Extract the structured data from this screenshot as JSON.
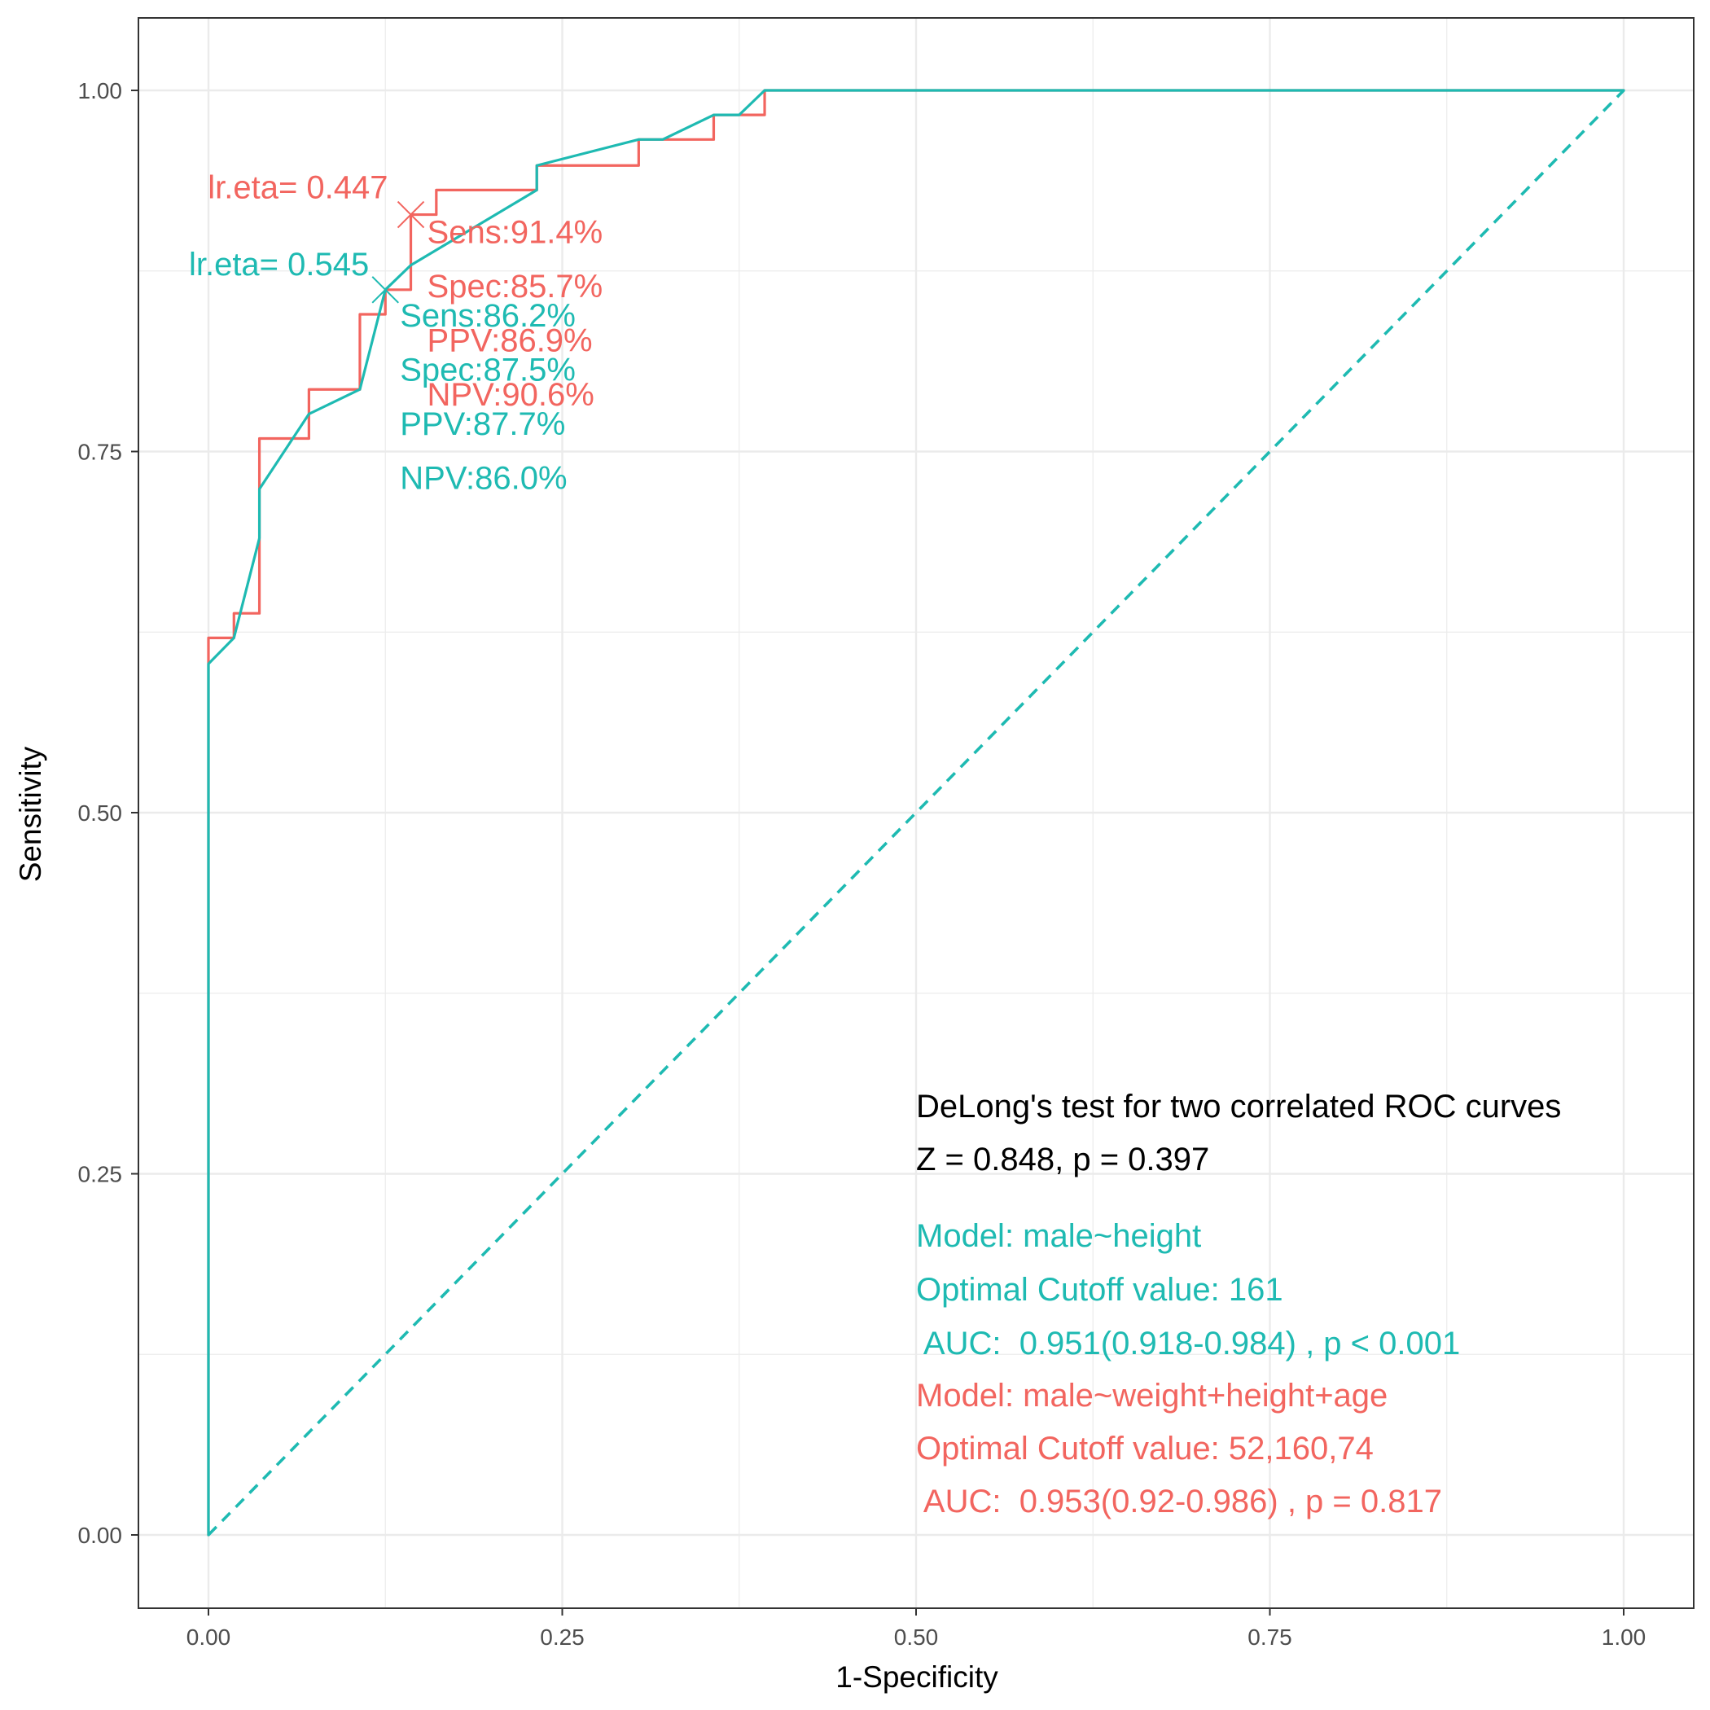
{
  "chart_data": {
    "type": "line",
    "title": "",
    "xlabel": "1-Specificity",
    "ylabel": "Sensitivity",
    "xlim": [
      -0.05,
      1.05
    ],
    "ylim": [
      -0.05,
      1.05
    ],
    "grid": true,
    "x_ticks": [
      0,
      0.25,
      0.5,
      0.75,
      1
    ],
    "x_tick_labels": [
      "0.00",
      "0.25",
      "0.50",
      "0.75",
      "1.00"
    ],
    "y_ticks": [
      0,
      0.25,
      0.5,
      0.75,
      1
    ],
    "y_tick_labels": [
      "0.00",
      "0.25",
      "0.50",
      "0.75",
      "1.00"
    ],
    "colors": {
      "model_height": "#1ebab2",
      "model_full": "#f2655f",
      "text": "#000000"
    },
    "series": [
      {
        "name": "male~weight+height+age",
        "color": "#f2655f",
        "shape": "step",
        "points": [
          [
            0,
            0
          ],
          [
            0,
            0.621
          ],
          [
            0.018,
            0.621
          ],
          [
            0.018,
            0.638
          ],
          [
            0.036,
            0.638
          ],
          [
            0.036,
            0.759
          ],
          [
            0.071,
            0.759
          ],
          [
            0.071,
            0.793
          ],
          [
            0.107,
            0.793
          ],
          [
            0.107,
            0.845
          ],
          [
            0.125,
            0.845
          ],
          [
            0.125,
            0.862
          ],
          [
            0.143,
            0.862
          ],
          [
            0.143,
            0.914
          ],
          [
            0.161,
            0.914
          ],
          [
            0.161,
            0.931
          ],
          [
            0.232,
            0.931
          ],
          [
            0.232,
            0.948
          ],
          [
            0.304,
            0.948
          ],
          [
            0.304,
            0.966
          ],
          [
            0.357,
            0.966
          ],
          [
            0.357,
            0.983
          ],
          [
            0.393,
            0.983
          ],
          [
            0.393,
            1
          ],
          [
            1,
            1
          ]
        ]
      },
      {
        "name": "male~height",
        "color": "#1ebab2",
        "shape": "line",
        "points": [
          [
            0,
            0
          ],
          [
            0,
            0.603
          ],
          [
            0.018,
            0.621
          ],
          [
            0.036,
            0.69
          ],
          [
            0.036,
            0.724
          ],
          [
            0.071,
            0.776
          ],
          [
            0.107,
            0.793
          ],
          [
            0.125,
            0.862
          ],
          [
            0.143,
            0.879
          ],
          [
            0.232,
            0.931
          ],
          [
            0.232,
            0.948
          ],
          [
            0.304,
            0.966
          ],
          [
            0.321,
            0.966
          ],
          [
            0.357,
            0.983
          ],
          [
            0.375,
            0.983
          ],
          [
            0.393,
            1
          ],
          [
            1,
            1
          ]
        ]
      },
      {
        "name": "reference",
        "color": "#1ebab2",
        "shape": "dashed",
        "points": [
          [
            0,
            0
          ],
          [
            1,
            1
          ]
        ]
      }
    ],
    "cutoff_points": [
      {
        "name": "model_full",
        "color": "#f2655f",
        "marker": "x",
        "fpr": 0.143,
        "tpr": 0.914,
        "label": "lr.eta= 0.447",
        "stats": [
          "Sens:91.4%",
          "Spec:85.7%",
          "PPV:86.9%",
          "NPV:90.6%"
        ]
      },
      {
        "name": "model_height",
        "color": "#1ebab2",
        "marker": "x",
        "fpr": 0.125,
        "tpr": 0.862,
        "label": "lr.eta= 0.545",
        "stats": [
          "Sens:86.2%",
          "Spec:87.5%",
          "PPV:87.7%",
          "NPV:86.0%"
        ]
      }
    ],
    "annotations": {
      "delong_title": "DeLong's test for two correlated ROC curves",
      "delong_stat": "Z = 0.848, p = 0.397",
      "model_height": {
        "model": "Model: male~height",
        "cutoff": "Optimal Cutoff value:  161",
        "auc": " AUC:  0.951(0.918-0.984) , p < 0.001"
      },
      "model_full": {
        "model": "Model: male~weight+height+age",
        "cutoff": "Optimal Cutoff value:  52,160,74",
        "auc": " AUC:  0.953(0.92-0.986) , p = 0.817"
      }
    }
  }
}
